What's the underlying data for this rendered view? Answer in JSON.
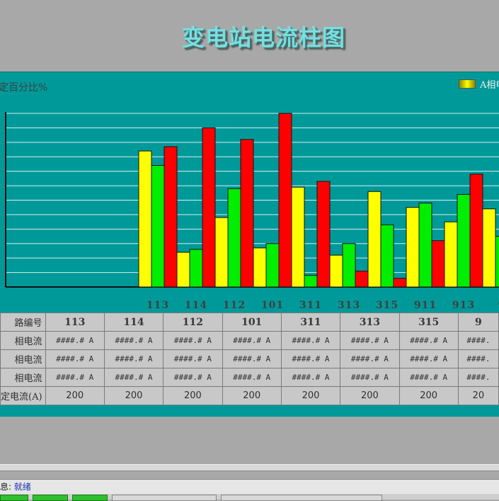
{
  "title": "变电站电流柱图",
  "chart_data": {
    "type": "bar",
    "ylabel": "定百分比%",
    "legend": [
      {
        "name": "A相电",
        "color": "#ffff00"
      }
    ],
    "colors": [
      "#ffff00",
      "#00ee00",
      "#ff0000"
    ],
    "categories": [
      "113",
      "114",
      "112",
      "101",
      "311",
      "313",
      "315",
      "911",
      "913",
      "9"
    ],
    "ylim": [
      0,
      12
    ],
    "grid": true,
    "series": [
      {
        "values": [
          9.4,
          2.4,
          4.8,
          2.7,
          6.9,
          2.2,
          6.6,
          5.5,
          4.5,
          5.4
        ]
      },
      {
        "values": [
          8.4,
          2.6,
          6.8,
          3.0,
          0.8,
          3.0,
          4.3,
          5.8,
          6.4,
          3.5
        ]
      },
      {
        "values": [
          9.7,
          11.0,
          10.2,
          12.0,
          7.3,
          1.1,
          0.6,
          3.2,
          7.8,
          8.6
        ]
      }
    ]
  },
  "table": {
    "header_label": "路编号",
    "columns": [
      "113",
      "114",
      "112",
      "101",
      "311",
      "313",
      "315",
      "9"
    ],
    "rows": [
      {
        "label": "相电流",
        "values": [
          "####.# A",
          "####.# A",
          "####.# A",
          "####.# A",
          "####.# A",
          "####.# A",
          "####.# A",
          "####."
        ]
      },
      {
        "label": "相电流",
        "values": [
          "####.# A",
          "####.# A",
          "####.# A",
          "####.# A",
          "####.# A",
          "####.# A",
          "####.# A",
          "####."
        ]
      },
      {
        "label": "相电流",
        "values": [
          "####.# A",
          "####.# A",
          "####.# A",
          "####.# A",
          "####.# A",
          "####.# A",
          "####.# A",
          "####."
        ]
      },
      {
        "label": "定电流(A)",
        "values": [
          "200",
          "200",
          "200",
          "200",
          "200",
          "200",
          "200",
          "20"
        ]
      }
    ]
  },
  "status": {
    "label": "息:",
    "value": "就绪"
  }
}
